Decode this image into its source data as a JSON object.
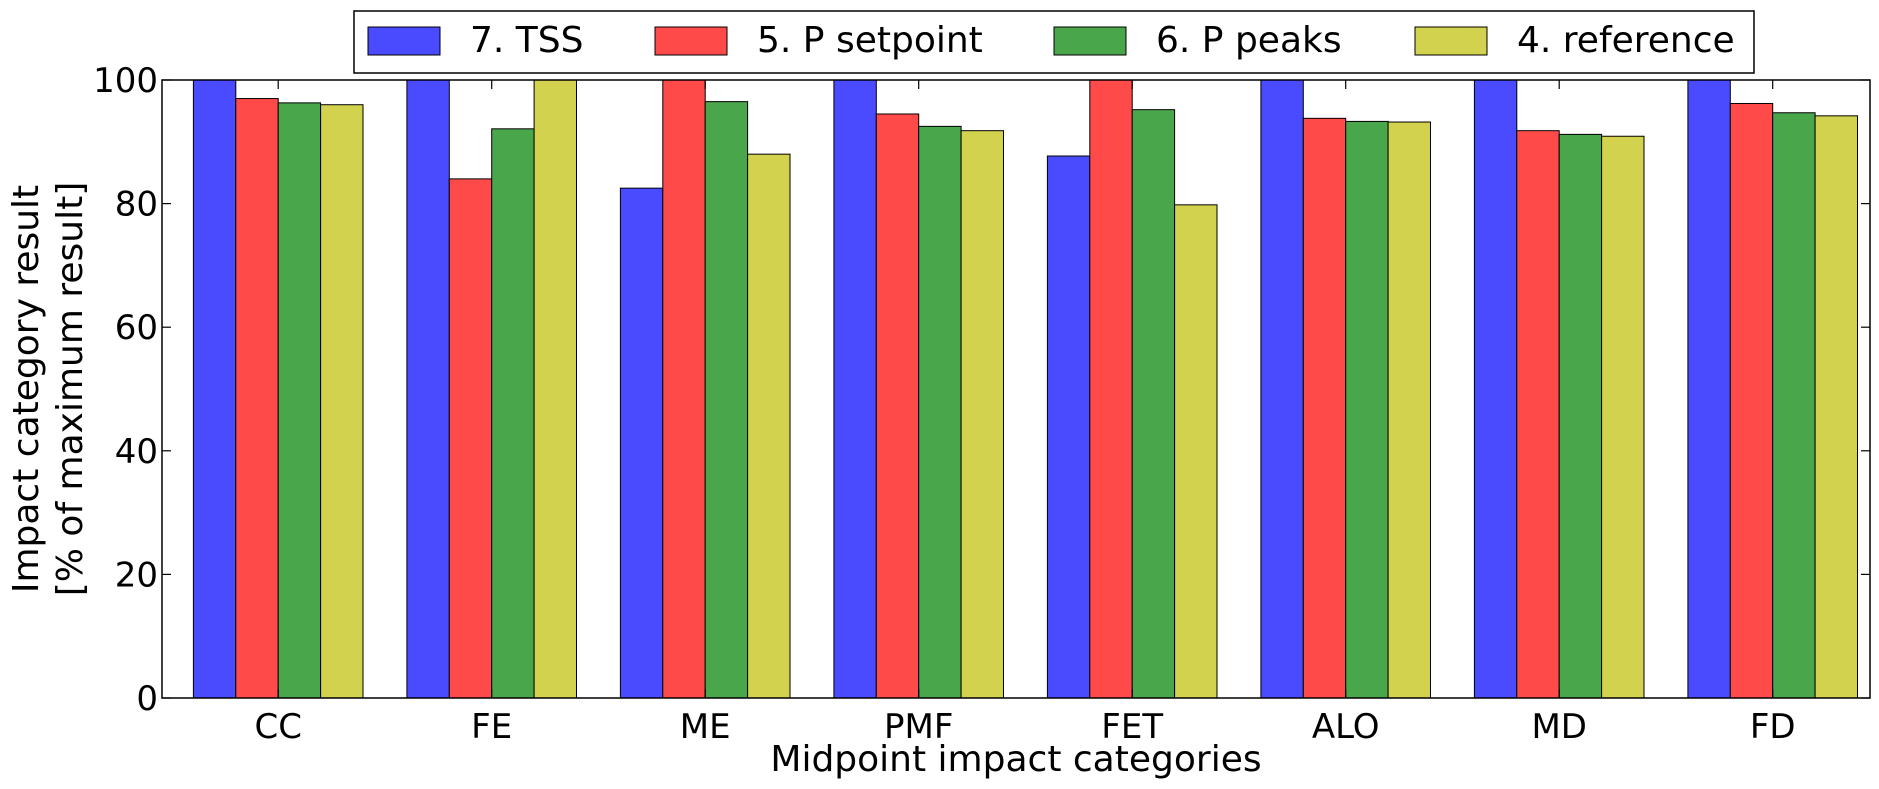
{
  "chart_data": {
    "type": "bar",
    "title": "",
    "xlabel": "Midpoint impact categories",
    "ylabel_lines": [
      "Impact category result",
      "[% of maximum result]"
    ],
    "ylim": [
      0,
      100
    ],
    "yticks": [
      0,
      20,
      40,
      60,
      80,
      100
    ],
    "grid": false,
    "legend_position": "top",
    "categories": [
      "CC",
      "FE",
      "ME",
      "PMF",
      "FET",
      "ALO",
      "MD",
      "FD"
    ],
    "series": [
      {
        "name": "7. TSS",
        "color": "#4a4aff",
        "values": [
          100,
          100,
          82.5,
          100,
          87.7,
          100,
          100,
          100
        ]
      },
      {
        "name": "5. P setpoint",
        "color": "#ff4a4a",
        "values": [
          97,
          84,
          100,
          94.5,
          100,
          93.8,
          91.8,
          96.2
        ]
      },
      {
        "name": "6. P peaks",
        "color": "#4aa64a",
        "values": [
          96.3,
          92.1,
          96.5,
          92.5,
          95.2,
          93.3,
          91.2,
          94.7
        ]
      },
      {
        "name": "4. reference",
        "color": "#d2d24e",
        "values": [
          96,
          100,
          88,
          91.8,
          79.8,
          93.2,
          90.9,
          94.2
        ]
      }
    ]
  }
}
